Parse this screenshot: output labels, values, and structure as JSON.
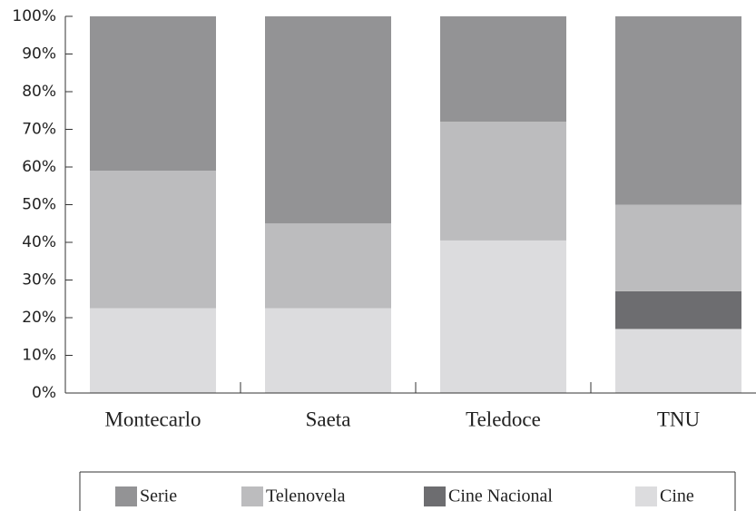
{
  "chart_data": {
    "type": "stacked_bar_100",
    "categories": [
      "Montecarlo",
      "Saeta",
      "Teledoce",
      "TNU"
    ],
    "series": [
      {
        "name": "Serie",
        "color": "#939395",
        "values": [
          41,
          55,
          28,
          50
        ]
      },
      {
        "name": "Telenovela",
        "color": "#bcbcbe",
        "values": [
          36.5,
          22.5,
          31.5,
          23
        ]
      },
      {
        "name": "Cine Nacional",
        "color": "#6d6d70",
        "values": [
          0,
          0,
          0,
          10
        ]
      },
      {
        "name": "Cine",
        "color": "#dcdcde",
        "values": [
          22.5,
          22.5,
          40.5,
          17
        ]
      }
    ],
    "ylim": [
      0,
      100
    ],
    "yticks": [
      {
        "value": 0,
        "label": "0%"
      },
      {
        "value": 10,
        "label": "10%"
      },
      {
        "value": 20,
        "label": "20%"
      },
      {
        "value": 30,
        "label": "30%"
      },
      {
        "value": 40,
        "label": "40%"
      },
      {
        "value": 50,
        "label": "50%"
      },
      {
        "value": 60,
        "label": "60%"
      },
      {
        "value": 70,
        "label": "70%"
      },
      {
        "value": 80,
        "label": "80%"
      },
      {
        "value": 90,
        "label": "90%"
      },
      {
        "value": 100,
        "label": "100%"
      }
    ],
    "grid": false,
    "legend": "bottom"
  }
}
